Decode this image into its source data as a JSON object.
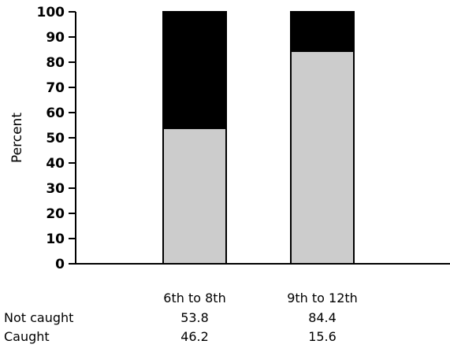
{
  "chart_data": {
    "type": "bar",
    "stacked": true,
    "categories": [
      "6th to 8th",
      "9th to 12th"
    ],
    "series": [
      {
        "name": "Not caught",
        "values": [
          53.8,
          84.4
        ],
        "color": "#cccccc"
      },
      {
        "name": "Caught",
        "values": [
          46.2,
          15.6
        ],
        "color": "#000000"
      }
    ],
    "ylabel": "Percent",
    "xlabel": "",
    "ylim": [
      0,
      100
    ],
    "yticks": [
      "0",
      "10",
      "20",
      "30",
      "40",
      "50",
      "60",
      "70",
      "80",
      "90",
      "100"
    ],
    "grid": false,
    "legend": "data table below chart",
    "table": {
      "headers": [
        "6th to 8th",
        "9th to 12th"
      ],
      "rows": [
        {
          "label": "Not caught",
          "values": [
            "53.8",
            "84.4"
          ]
        },
        {
          "label": "Caught",
          "values": [
            "46.2",
            "15.6"
          ]
        }
      ]
    }
  }
}
